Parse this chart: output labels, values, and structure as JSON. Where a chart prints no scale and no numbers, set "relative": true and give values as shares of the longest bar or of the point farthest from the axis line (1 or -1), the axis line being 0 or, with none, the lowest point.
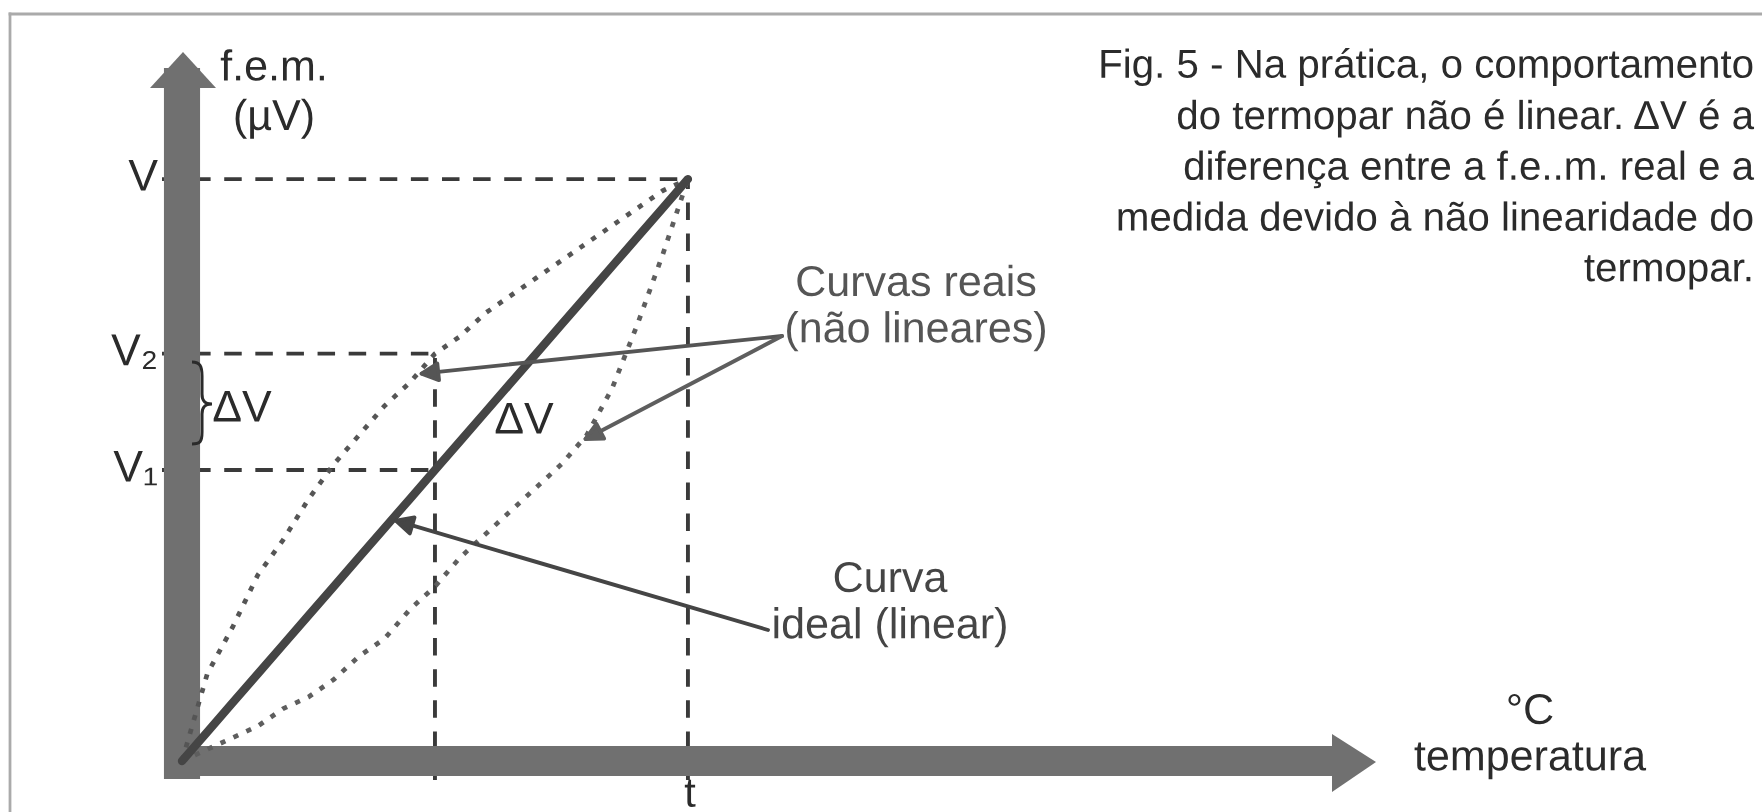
{
  "chart_data": {
    "type": "line",
    "relative": true,
    "title": "Fig. 5 - Na prática, o comportamento\ndo termopar não é linear. ΔV é a\ndiferença entre a f.e..m. real e a\nmedida devido à não linearidade do\ntermopar.",
    "ylabel": "f.e.m.\n(µV)",
    "categories": [
      null,
      null,
      null,
      null,
      null,
      null,
      null,
      null,
      null,
      null,
      null,
      null,
      null,
      null,
      null,
      null,
      null,
      null,
      null,
      null,
      null
    ],
    "series": [
      {
        "name": "Curva\nideal (linear)",
        "color": "#454545",
        "line_style": "solid",
        "values": [
          0,
          0.05,
          0.1,
          0.15,
          0.2,
          0.25,
          0.3,
          0.35,
          0.4,
          0.45,
          0.5,
          0.55,
          0.6,
          0.65,
          0.7,
          0.75,
          0.8,
          0.85,
          0.9,
          0.95,
          1
        ]
      },
      {
        "name": "Curvas reais\n(não lineares)",
        "color": "#555555",
        "line_style": "dotted",
        "values": [
          0,
          0.15,
          0.23,
          0.32,
          0.38,
          0.45,
          0.51,
          0.56,
          0.61,
          0.65,
          0.7,
          0.73,
          0.77,
          0.8,
          0.83,
          0.86,
          0.89,
          0.92,
          0.95,
          0.98,
          1
        ]
      },
      {
        "color": "#5e5e5e",
        "line_style": "dotted",
        "values": [
          0,
          0.02,
          0.04,
          0.06,
          0.09,
          0.11,
          0.14,
          0.18,
          0.21,
          0.26,
          0.3,
          0.35,
          0.39,
          0.43,
          0.47,
          0.51,
          0.56,
          0.64,
          0.75,
          0.87,
          1
        ]
      }
    ],
    "ref_lines": [
      {
        "axis": "y",
        "value": 1,
        "label": "V",
        "color": "#3a3a3a",
        "line_style": "dashed"
      },
      {
        "axis": "y",
        "value": 0.7,
        "label": "V₂",
        "color": "#3a3a3a",
        "line_style": "dashed"
      },
      {
        "axis": "y",
        "value": 0.5,
        "label": "V₁",
        "color": "#3a3a3a",
        "line_style": "dashed"
      }
    ],
    "annotations": [
      "ΔV",
      "ΔV",
      "t",
      "°C\ntemperatura"
    ]
  }
}
